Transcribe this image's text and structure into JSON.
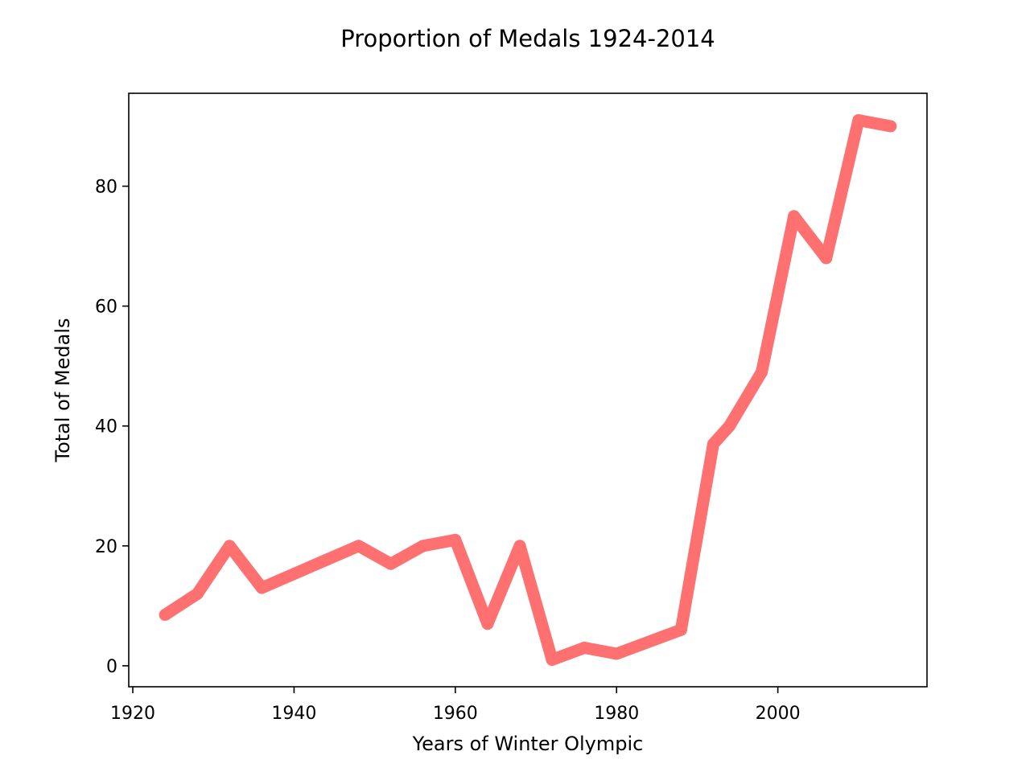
{
  "chart_data": {
    "type": "line",
    "title": "Proportion of Medals 1924-2014",
    "xlabel": "Years of Winter Olympic",
    "ylabel": "Total of Medals",
    "xlim": [
      1919.5,
      2018.5
    ],
    "ylim": [
      -3.5,
      95.5
    ],
    "xticks": [
      1920,
      1940,
      1960,
      1980,
      2000
    ],
    "yticks": [
      0,
      20,
      40,
      60,
      80
    ],
    "grid": false,
    "legend": "none",
    "line_color": "#ff7070",
    "series": [
      {
        "x": [
          1924,
          1928,
          1932,
          1936,
          1948,
          1952,
          1956,
          1960,
          1964,
          1968,
          1972,
          1976,
          1980,
          1988,
          1992,
          1994,
          1998,
          2002,
          2006,
          2010,
          2014
        ],
        "y": [
          8.5,
          12,
          20,
          13,
          20,
          17,
          20,
          21,
          7,
          20,
          1,
          3,
          2,
          6,
          37,
          40,
          49,
          75,
          68,
          91,
          90
        ]
      }
    ]
  }
}
